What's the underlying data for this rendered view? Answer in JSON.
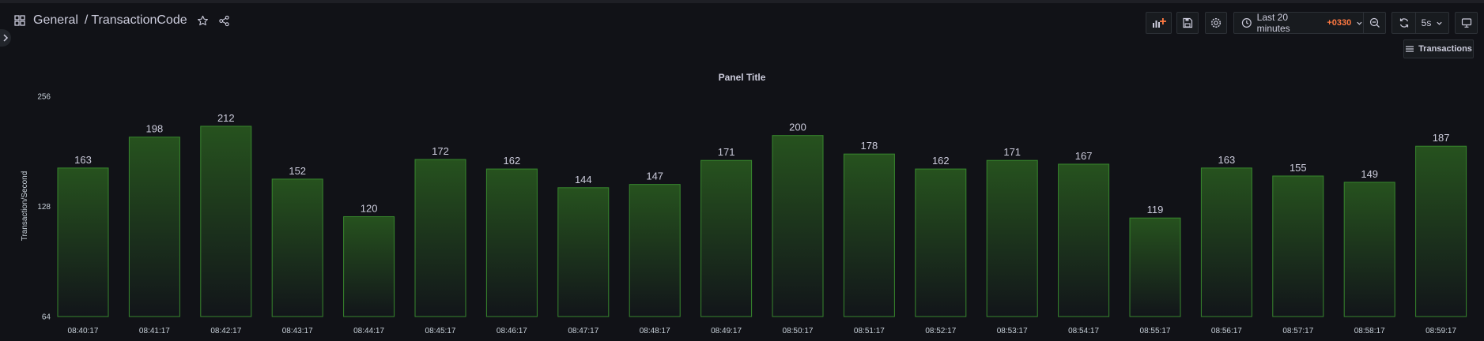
{
  "breadcrumb": {
    "folder": "General",
    "separator": "/",
    "title": "TransactionCode"
  },
  "toolbar": {
    "time_range": "Last 20 minutes",
    "timezone": "+0330",
    "refresh_interval": "5s",
    "icons": [
      "add-panel-icon",
      "save-icon",
      "settings-icon",
      "clock-icon",
      "zoom-out-icon",
      "refresh-icon",
      "tv-mode-icon"
    ]
  },
  "annotations_button": {
    "label": "Transactions"
  },
  "panel": {
    "title": "Panel Title"
  },
  "colors": {
    "bar_fill_top": "#26521e",
    "bar_fill_bottom": "#12151a",
    "bar_stroke": "#37872d",
    "timezone": "#ff7941",
    "background": "#111217"
  },
  "chart_data": {
    "type": "bar",
    "title": "Panel Title",
    "ylabel": "Transaction/Second",
    "xlabel": "",
    "scale": "log2",
    "ylim": [
      64,
      256
    ],
    "yticks": [
      64,
      128,
      256
    ],
    "categories": [
      "08:40:17",
      "08:41:17",
      "08:42:17",
      "08:43:17",
      "08:44:17",
      "08:45:17",
      "08:46:17",
      "08:47:17",
      "08:48:17",
      "08:49:17",
      "08:50:17",
      "08:51:17",
      "08:52:17",
      "08:53:17",
      "08:54:17",
      "08:55:17",
      "08:56:17",
      "08:57:17",
      "08:58:17",
      "08:59:17"
    ],
    "values": [
      163,
      198,
      212,
      152,
      120,
      172,
      162,
      144,
      147,
      171,
      200,
      178,
      162,
      171,
      167,
      119,
      163,
      155,
      149,
      187
    ],
    "grid": false,
    "legend": "none"
  }
}
